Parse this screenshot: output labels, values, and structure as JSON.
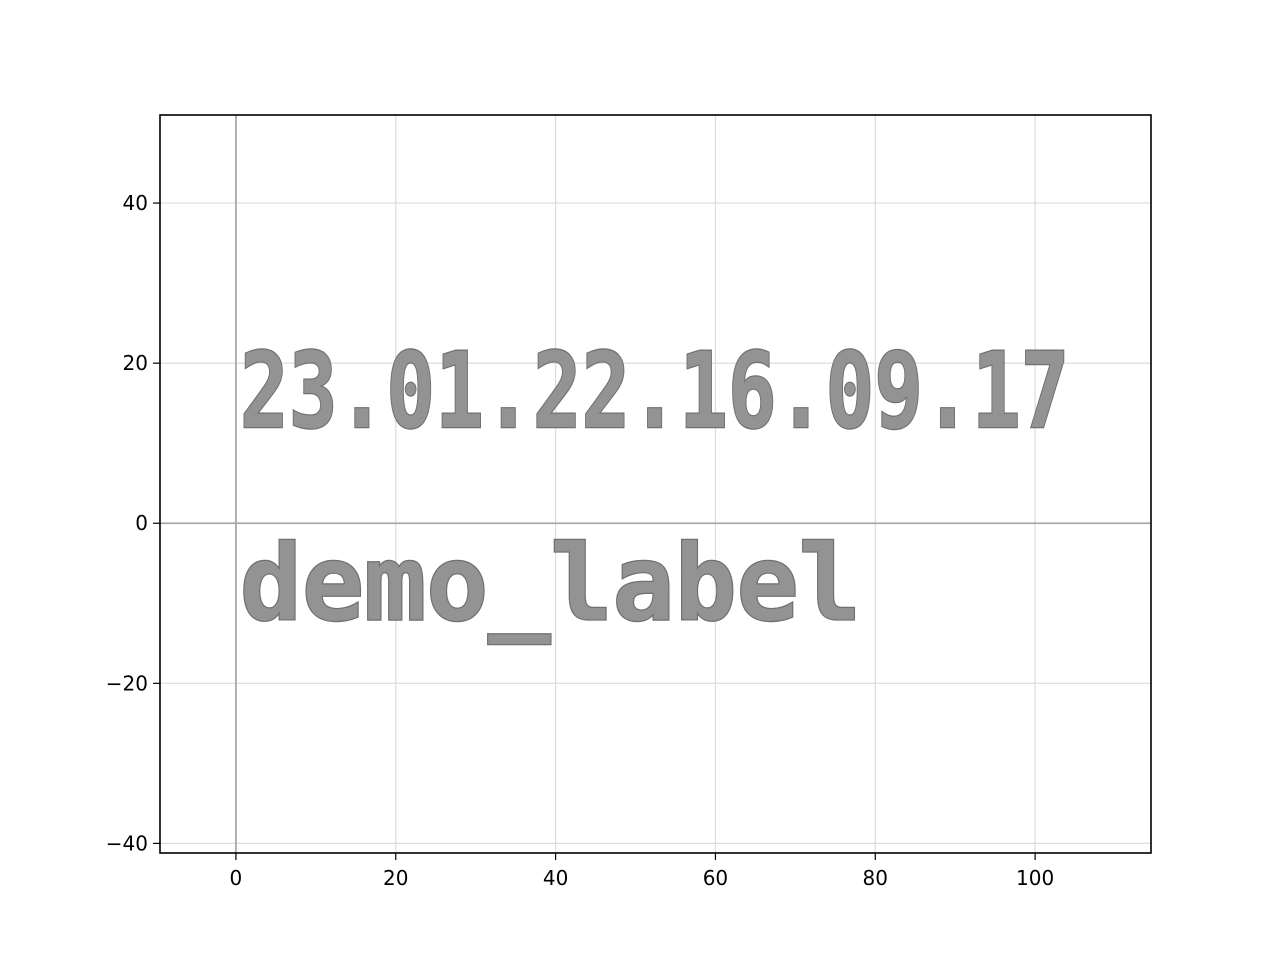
{
  "chart_data": {
    "type": "scatter",
    "title": "",
    "xlabel": "",
    "ylabel": "",
    "xlim": [
      -9.5,
      114.5
    ],
    "ylim": [
      -41.2,
      51
    ],
    "grid": true,
    "x_ticks": [
      0,
      20,
      40,
      60,
      80,
      100
    ],
    "y_ticks": [
      -40,
      -20,
      0,
      20,
      40
    ],
    "x_tick_labels": [
      "0",
      "20",
      "40",
      "60",
      "80",
      "100"
    ],
    "y_tick_labels": [
      "−40",
      "−20",
      "0",
      "20",
      "40"
    ],
    "reference_lines": {
      "x": 0,
      "y": 0
    },
    "annotations": [
      {
        "text": "23.01.22.16.09.17",
        "x": 0.5,
        "y": 12,
        "x_end": 104.3,
        "fill": "#939393",
        "edge": "#6f6f6f"
      },
      {
        "text": "demo_label",
        "x": 0.5,
        "y": -12,
        "x_end": 78.2,
        "fill": "#939393",
        "edge": "#6f6f6f"
      }
    ]
  }
}
